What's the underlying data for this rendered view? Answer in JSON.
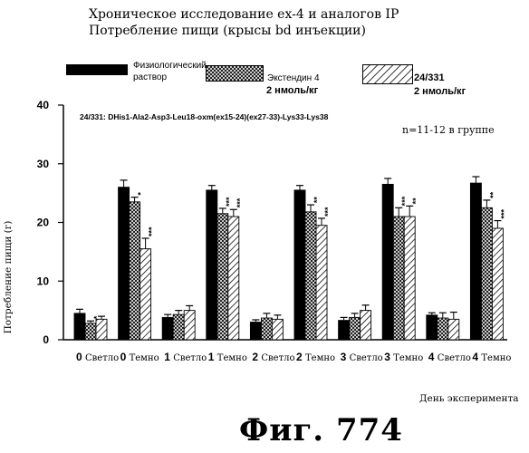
{
  "header": {
    "title_line1": "Хроническое исследование ex-4 и аналогов IP",
    "title_line2": "Потребление пищи (крысы bd инъекции)"
  },
  "figure_label": "Фиг. 774",
  "chart_data": {
    "type": "bar",
    "ylabel": "Потребление пищи (г)",
    "xlabel": "День эксперимента",
    "ylim": [
      0,
      40
    ],
    "yticks": [
      0,
      10,
      20,
      30,
      40
    ],
    "annotation_compound": "24/331: DHis1-Ala2-Asp3-Leu18-oxm(ex15-24)(ex27-33)-Lys33-Lys38",
    "annotation_n": "n=11-12 в группе",
    "categories": [
      "0 Светло",
      "0 Темно",
      "1 Светло",
      "1 Темно",
      "2 Светло",
      "2 Темно",
      "3 Светло",
      "3 Темно",
      "4 Светло",
      "4 Темно"
    ],
    "category_parts": [
      [
        "0",
        "Светло"
      ],
      [
        "0",
        "Темно"
      ],
      [
        "1",
        "Светло"
      ],
      [
        "1",
        "Темно"
      ],
      [
        "2",
        "Светло"
      ],
      [
        "2",
        "Темно"
      ],
      [
        "3",
        "Светло"
      ],
      [
        "3",
        "Темно"
      ],
      [
        "4",
        "Светло"
      ],
      [
        "4",
        "Темно"
      ]
    ],
    "series": [
      {
        "name": "Физиологический раствор",
        "legend_lines": [
          "Физиологический",
          "раствор"
        ],
        "pattern": "solid",
        "values": [
          4.5,
          26.0,
          3.8,
          25.5,
          3.0,
          25.5,
          3.3,
          26.5,
          4.2,
          26.7
        ],
        "errors": [
          0.7,
          1.2,
          0.5,
          0.8,
          0.4,
          0.8,
          0.5,
          1.0,
          0.4,
          1.1
        ],
        "sig": [
          "",
          "",
          "",
          "",
          "",
          "",
          "",
          "",
          "",
          ""
        ]
      },
      {
        "name": "Экстендин 4 2 нмоль/кг",
        "legend_lines": [
          "Экстендин 4",
          "2 нмоль/кг"
        ],
        "pattern": "crosshatch",
        "values": [
          2.8,
          23.5,
          4.3,
          21.5,
          3.7,
          21.8,
          3.8,
          21.0,
          3.7,
          22.5
        ],
        "errors": [
          0.4,
          0.8,
          0.7,
          0.9,
          0.8,
          1.2,
          0.7,
          1.5,
          0.9,
          1.3
        ],
        "sig": [
          "*",
          "*",
          "",
          "***",
          "",
          "**",
          "",
          "***",
          "",
          "**"
        ]
      },
      {
        "name": "24/331 2 нмоль/кг",
        "legend_lines": [
          "24/331",
          "2 нмоль/кг"
        ],
        "pattern": "diagonal",
        "values": [
          3.5,
          15.5,
          5.0,
          21.0,
          3.5,
          19.5,
          5.0,
          21.0,
          3.5,
          19.0
        ],
        "errors": [
          0.5,
          1.8,
          0.8,
          1.2,
          0.7,
          1.2,
          0.9,
          1.8,
          1.2,
          1.3
        ],
        "sig": [
          "",
          "***",
          "",
          "***",
          "",
          "***",
          "",
          "**",
          "",
          "***"
        ]
      }
    ],
    "grid": false,
    "legend_position": "top"
  },
  "colors": {
    "ink": "#000000",
    "background": "#ffffff"
  }
}
